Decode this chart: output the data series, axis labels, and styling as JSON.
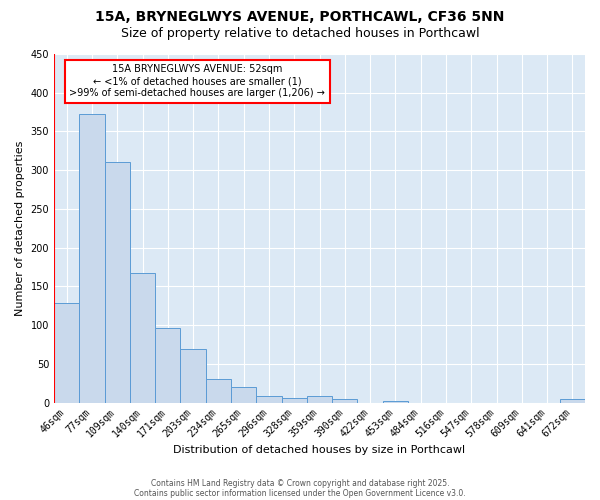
{
  "title": "15A, BRYNEGLWYS AVENUE, PORTHCAWL, CF36 5NN",
  "subtitle": "Size of property relative to detached houses in Porthcawl",
  "xlabel": "Distribution of detached houses by size in Porthcawl",
  "ylabel": "Number of detached properties",
  "categories": [
    "46sqm",
    "77sqm",
    "109sqm",
    "140sqm",
    "171sqm",
    "203sqm",
    "234sqm",
    "265sqm",
    "296sqm",
    "328sqm",
    "359sqm",
    "390sqm",
    "422sqm",
    "453sqm",
    "484sqm",
    "516sqm",
    "547sqm",
    "578sqm",
    "609sqm",
    "641sqm",
    "672sqm"
  ],
  "values": [
    128,
    372,
    310,
    167,
    96,
    69,
    30,
    20,
    8,
    6,
    8,
    4,
    0,
    2,
    0,
    0,
    0,
    0,
    0,
    0,
    4
  ],
  "bar_color": "#c9d9ec",
  "bar_edge_color": "#5b9bd5",
  "background_color": "#ffffff",
  "plot_background_color": "#dce9f5",
  "grid_color": "#ffffff",
  "annotation_box_text": "15A BRYNEGLWYS AVENUE: 52sqm\n← <1% of detached houses are smaller (1)\n>99% of semi-detached houses are larger (1,206) →",
  "annotation_box_color": "#ffffff",
  "annotation_box_edge_color": "#ff0000",
  "vline_color": "#ff0000",
  "ylim": [
    0,
    450
  ],
  "title_fontsize": 10,
  "subtitle_fontsize": 9,
  "axis_fontsize": 8,
  "tick_fontsize": 7,
  "annotation_fontsize": 7,
  "footer_line1": "Contains HM Land Registry data © Crown copyright and database right 2025.",
  "footer_line2": "Contains public sector information licensed under the Open Government Licence v3.0."
}
